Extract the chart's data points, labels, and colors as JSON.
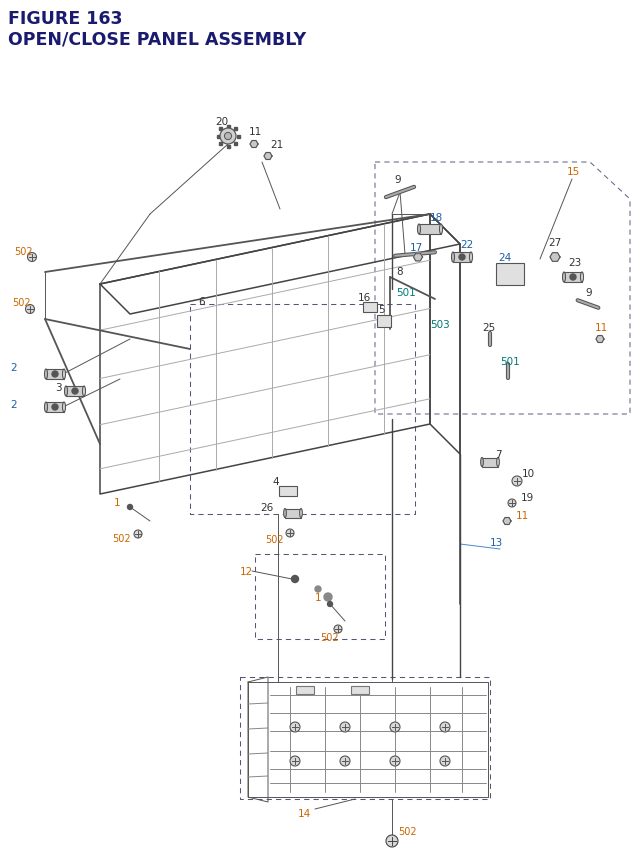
{
  "title_line1": "FIGURE 163",
  "title_line2": "OPEN/CLOSE PANEL ASSEMBLY",
  "title_color": "#1a1a6e",
  "title_fontsize": 12.5,
  "bg_color": "#ffffff",
  "oc": "#cc6600",
  "bc": "#1a5fa8",
  "bk": "#333333",
  "tc": "#007777",
  "fig_width": 6.4,
  "fig_height": 8.62,
  "dpi": 100
}
